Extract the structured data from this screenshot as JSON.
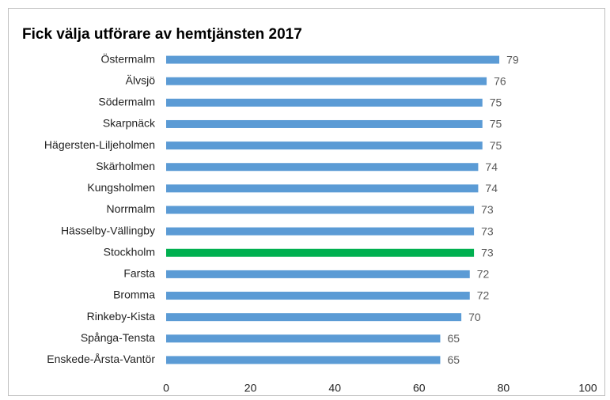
{
  "chart_data": {
    "type": "barh",
    "title": "Fick välja utförare av hemtjänsten 2017",
    "categories": [
      "Östermalm",
      "Älvsjö",
      "Södermalm",
      "Skarpnäck",
      "Hägersten-Liljeholmen",
      "Skärholmen",
      "Kungsholmen",
      "Norrmalm",
      "Hässelby-Vällingby",
      "Stockholm",
      "Farsta",
      "Bromma",
      "Rinkeby-Kista",
      "Spånga-Tensta",
      "Enskede-Årsta-Vantör"
    ],
    "values": [
      79,
      76,
      75,
      75,
      75,
      74,
      74,
      73,
      73,
      73,
      72,
      72,
      70,
      65,
      65
    ],
    "colors": [
      "#5b9bd5",
      "#5b9bd5",
      "#5b9bd5",
      "#5b9bd5",
      "#5b9bd5",
      "#5b9bd5",
      "#5b9bd5",
      "#5b9bd5",
      "#5b9bd5",
      "#00b050",
      "#5b9bd5",
      "#5b9bd5",
      "#5b9bd5",
      "#5b9bd5",
      "#5b9bd5"
    ],
    "xlim": [
      0,
      100
    ],
    "xticks": [
      0,
      20,
      40,
      60,
      80,
      100
    ],
    "grid": false
  }
}
